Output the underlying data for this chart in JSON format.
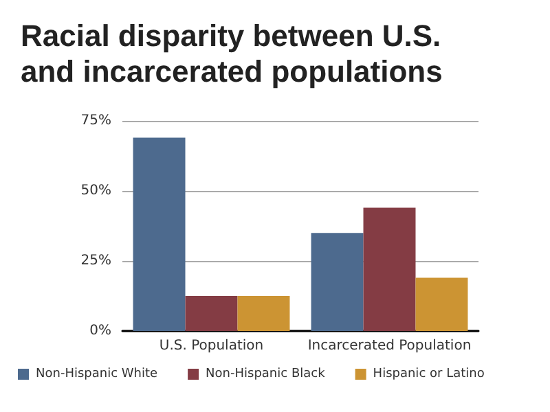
{
  "chart_data": {
    "type": "bar",
    "title": "Racial disparity between U.S.\nand incarcerated populations",
    "categories": [
      "U.S. Population",
      "Incarcerated Population"
    ],
    "series": [
      {
        "name": "Non-Hispanic White",
        "color": "#4d6a8e",
        "values": [
          69,
          35
        ]
      },
      {
        "name": "Non-Hispanic Black",
        "color": "#843c44",
        "values": [
          12.5,
          44
        ]
      },
      {
        "name": "Hispanic or Latino",
        "color": "#cc9433",
        "values": [
          12.5,
          19
        ]
      }
    ],
    "ylim": [
      0,
      75
    ],
    "yticks": [
      {
        "value": 0,
        "label": "0%"
      },
      {
        "value": 25,
        "label": "25%"
      },
      {
        "value": 50,
        "label": "50%"
      },
      {
        "value": 75,
        "label": "75%"
      }
    ],
    "grid": "y",
    "legend": "bottom"
  }
}
